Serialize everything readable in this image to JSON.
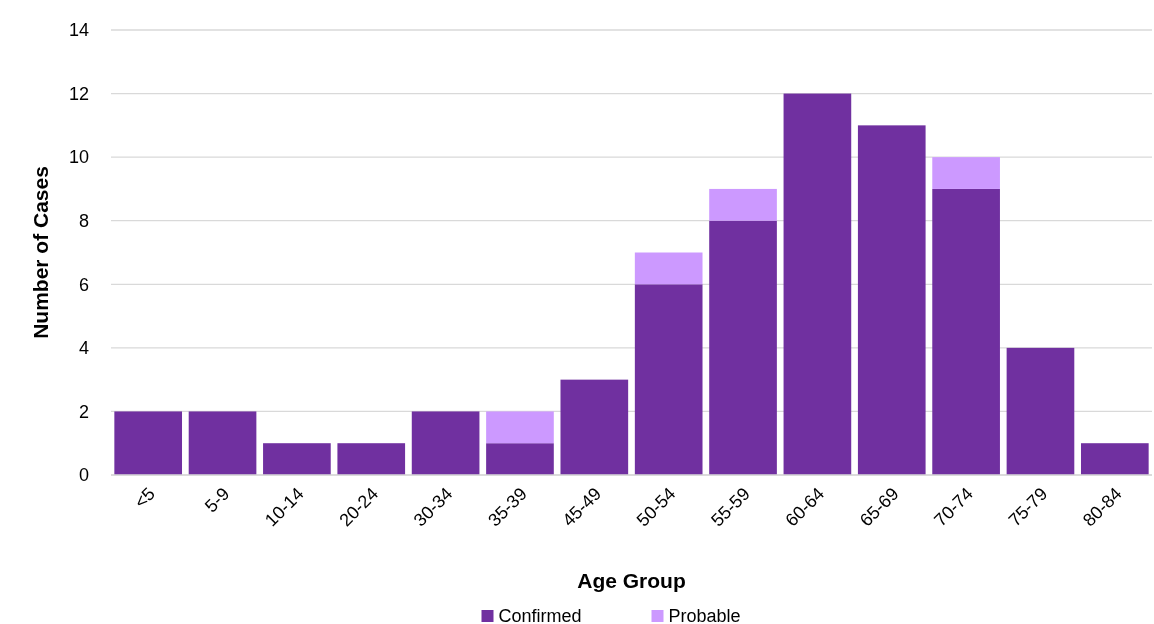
{
  "chart_data": {
    "type": "bar",
    "stacked": true,
    "xlabel": "Age Group",
    "ylabel": "Number of Cases",
    "categories": [
      "<5",
      "5-9",
      "10-14",
      "20-24",
      "30-34",
      "35-39",
      "45-49",
      "50-54",
      "55-59",
      "60-64",
      "65-69",
      "70-74",
      "75-79",
      "80-84"
    ],
    "series": [
      {
        "name": "Confirmed",
        "color": "#7030a0",
        "values": [
          2,
          2,
          1,
          1,
          2,
          1,
          3,
          6,
          8,
          12,
          11,
          9,
          4,
          1
        ]
      },
      {
        "name": "Probable",
        "color": "#cc99ff",
        "values": [
          null,
          null,
          null,
          null,
          null,
          1,
          null,
          1,
          1,
          null,
          null,
          1,
          null,
          null
        ]
      }
    ],
    "ylim": [
      0,
      14
    ],
    "yticks": [
      0,
      2,
      4,
      6,
      8,
      10,
      12,
      14
    ],
    "grid": "y",
    "legend": "bottom"
  }
}
